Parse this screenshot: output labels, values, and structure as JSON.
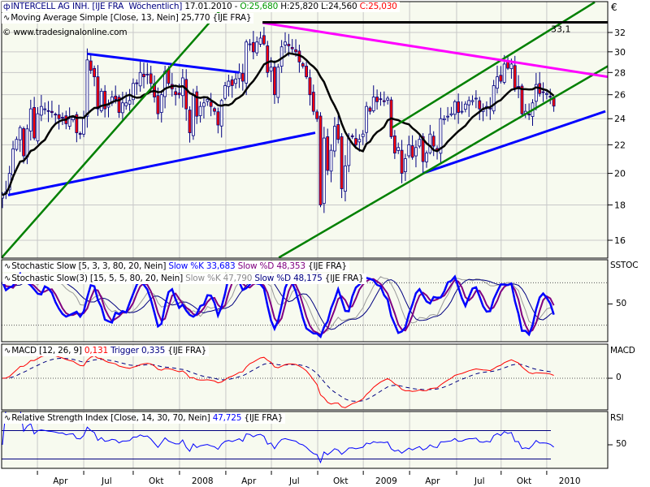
{
  "header": {
    "symbol_icon": "candlestick-icon",
    "title": "INTERCELL AG INH. [IJE FRA",
    "interval": "Wöchentlich]",
    "date": "17.01.2010 -",
    "open": "O:25,680",
    "high": "H:25,820",
    "low": "L:24,560",
    "close": "C:25,030"
  },
  "ma_label": "Moving Average Simple [Close, 13, Nein] 25,770 {IJE FRA}",
  "copyright": "© www.tradesignalonline.com",
  "stoch1": {
    "name": "Stochastic Slow [5, 3, 3, 80, 20, Nein]",
    "k": "Slow %K 33,683",
    "d": "Slow %D 48,353",
    "ex": "{IJE FRA}"
  },
  "stoch2": {
    "name": "Stochastic Slow(3) [15, 5, 5, 80, 20, Nein]",
    "k": "Slow %K 47,790",
    "d": "Slow %D 48,175",
    "ex": "{IJE FRA}"
  },
  "macd": {
    "name": "MACD [12, 26, 9]",
    "value": "0,131",
    "trigger": "Trigger 0,335",
    "ex": "{IJE FRA}"
  },
  "rsi": {
    "name": "Relative Strength Index [Close, 14, 30, 70, Nein]",
    "value": "47,725",
    "ex": "{IJE FRA}"
  },
  "axis": {
    "currency": "€",
    "sstoc": "SSTOC",
    "stoch_tick": "50",
    "macd": "MACD",
    "macd_tick": "0",
    "rsi": "RSI",
    "rsi_tick": "50"
  },
  "colors": {
    "background": "#f7faef",
    "grid": "#c8c8c8",
    "candle_up": "#ffffff",
    "candle_down": "#ff0000",
    "candle_outline": "#000080",
    "ma": "#000000",
    "trend_blue": "#0000ff",
    "trend_green": "#008000",
    "trend_magenta": "#ff00ff",
    "stoch_k": "#0000ff",
    "stoch_d": "#800080",
    "stoch2_k": "#999999",
    "stoch2_d": "#000080",
    "macd": "#ff0000",
    "trigger": "#000080",
    "rsi": "#0000ff"
  },
  "chart_data": {
    "type": "candlestick",
    "title": "INTERCELL AG INH. [IJE FRA Wöchentlich]",
    "interval": "weekly",
    "scale": "log",
    "ylim": [
      15.1,
      35.4
    ],
    "price_ticks": [
      32,
      30,
      28,
      26,
      24,
      22,
      20,
      18,
      16
    ],
    "price_tick_labels": [
      "32",
      "30",
      "28",
      "26",
      "24",
      "22",
      "20",
      "18",
      "16"
    ],
    "x_ticks_week_index": [
      9.9,
      23.0,
      37.0,
      50.1,
      63.2,
      76.1,
      89.2,
      102.1,
      115.2,
      128.5,
      141.1,
      154.0
    ],
    "x_tick_labels": [
      "Apr",
      "Jul",
      "Okt",
      "2008",
      "Apr",
      "Jul",
      "Okt",
      "2009",
      "Apr",
      "Jul",
      "Okt",
      "2010"
    ],
    "closes": [
      18.6,
      18.8,
      20.0,
      21.7,
      22.4,
      23.3,
      21.2,
      23.2,
      24.8,
      22.5,
      24.4,
      25.0,
      24.8,
      24.6,
      24.5,
      24.3,
      24.0,
      24.1,
      23.6,
      24.0,
      24.1,
      22.9,
      22.8,
      24.1,
      29.2,
      28.2,
      27.6,
      24.8,
      26.3,
      24.8,
      25.1,
      25.8,
      25.6,
      24.5,
      25.3,
      25.3,
      25.5,
      27.0,
      27.0,
      28.0,
      27.6,
      27.8,
      27.0,
      25.8,
      24.4,
      26.0,
      28.1,
      27.0,
      26.5,
      26.0,
      26.0,
      27.5,
      24.8,
      22.9,
      26.0,
      24.2,
      25.0,
      25.3,
      25.6,
      25.0,
      24.6,
      23.5,
      25.5,
      26.8,
      27.2,
      26.8,
      27.4,
      28.0,
      27.2,
      31.0,
      30.8,
      30.0,
      31.0,
      31.4,
      30.8,
      28.0,
      28.5,
      26.0,
      28.5,
      30.5,
      31.0,
      30.6,
      30.3,
      30.0,
      29.0,
      28.6,
      27.6,
      26.0,
      24.6,
      24.0,
      18.0,
      22.5,
      20.2,
      21.6,
      23.4,
      22.4,
      19.0,
      20.5,
      22.5,
      22.6,
      22.0,
      22.4,
      22.8,
      25.0,
      24.6,
      25.8,
      25.4,
      25.6,
      25.4,
      25.7,
      22.6,
      21.4,
      21.8,
      20.0,
      21.0,
      22.0,
      21.1,
      21.8,
      22.4,
      20.8,
      21.4,
      22.8,
      21.9,
      21.6,
      24.0,
      24.0,
      24.2,
      24.4,
      25.4,
      24.5,
      24.6,
      25.2,
      25.5,
      25.5,
      25.7,
      24.8,
      24.7,
      25.0,
      24.8,
      26.8,
      27.6,
      27.2,
      28.8,
      28.4,
      28.8,
      26.6,
      26.6,
      24.4,
      24.6,
      24.3,
      25.3,
      26.9,
      26.1,
      26.2,
      26.1,
      25.8,
      25.03
    ],
    "last_bar": {
      "open": 25.68,
      "high": 25.82,
      "low": 24.56,
      "close": 25.03
    },
    "moving_average": {
      "type": "simple",
      "period": 13,
      "last": 25.77
    },
    "trendlines": [
      {
        "name": "blue-upper",
        "color": "blue",
        "from": [
          24,
          29.8
        ],
        "to": [
          67,
          28.0
        ],
        "extend": false
      },
      {
        "name": "blue-lower-1",
        "color": "blue",
        "from": [
          1.6,
          18.6
        ],
        "to": [
          88.5,
          22.9
        ],
        "extend": false
      },
      {
        "name": "blue-lower-2",
        "color": "blue",
        "from": [
          118.9,
          20.0
        ],
        "to": [
          170.6,
          24.6
        ],
        "extend": false
      },
      {
        "name": "green-1",
        "color": "green",
        "from": [
          -0.2,
          15.1
        ],
        "to": [
          56.1,
          32.0
        ],
        "extend": true
      },
      {
        "name": "green-channel-lower",
        "color": "green",
        "from": [
          78.2,
          15.1
        ],
        "to": [
          171.3,
          28.6
        ],
        "extend": false
      },
      {
        "name": "green-channel-upper",
        "color": "green",
        "from": [
          110.3,
          23.3
        ],
        "to": [
          167.6,
          35.4
        ],
        "extend": false
      },
      {
        "name": "magenta-resistance",
        "color": "magenta",
        "from": [
          73.6,
          33.05
        ],
        "to": [
          171.3,
          27.6
        ],
        "extend": false
      }
    ],
    "horizontal_line": {
      "price": 33.1,
      "label": "33,1",
      "from_week": 73.6
    },
    "indicators": {
      "stochastic": {
        "levels": [
          80,
          20
        ],
        "tick": 50,
        "last_k": 33.683,
        "last_d": 48.353
      },
      "stochastic3": {
        "last_k": 47.79,
        "last_d": 48.175
      },
      "macd": {
        "fast": 12,
        "slow": 26,
        "signal": 9,
        "last": 0.131,
        "trigger": 0.335
      },
      "rsi": {
        "period": 14,
        "levels": [
          30,
          70
        ],
        "last": 47.725
      }
    }
  }
}
